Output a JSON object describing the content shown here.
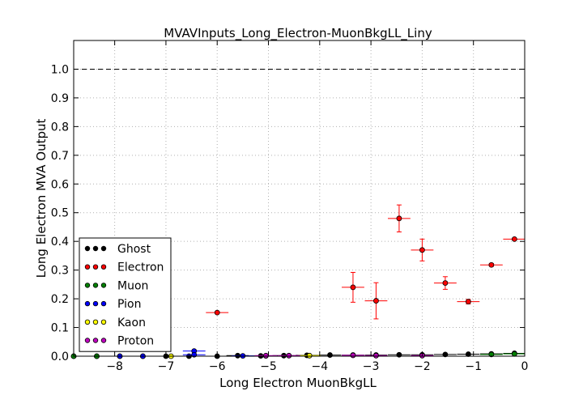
{
  "chart_data": {
    "type": "scatter",
    "title": "MVAVInputs_Long_Electron-MuonBkgLL_Liny",
    "xlabel": "Long Electron MuonBkgLL",
    "ylabel": "Long Electron MVA Output",
    "xlim": [
      -8.8,
      0
    ],
    "ylim": [
      0,
      1.1
    ],
    "xticks": [
      -8,
      -7,
      -6,
      -5,
      -4,
      -3,
      -2,
      -1,
      0
    ],
    "xtick_labels": [
      "−8",
      "−7",
      "−6",
      "−5",
      "−4",
      "−3",
      "−2",
      "−1",
      "0"
    ],
    "yticks": [
      0.0,
      0.1,
      0.2,
      0.3,
      0.4,
      0.5,
      0.6,
      0.7,
      0.8,
      0.9,
      1.0
    ],
    "ytick_labels": [
      "0.0",
      "0.1",
      "0.2",
      "0.3",
      "0.4",
      "0.5",
      "0.6",
      "0.7",
      "0.8",
      "0.9",
      "1.0"
    ],
    "grid": true,
    "reference_line": 1.0,
    "legend_position": "lower-left",
    "series": [
      {
        "name": "Ghost",
        "color": "#000000",
        "points": [
          {
            "x": -8.8,
            "y": 0.0,
            "xerr": 0.22,
            "yerr": 0.0
          },
          {
            "x": -8.35,
            "y": 0.0,
            "xerr": 0.22,
            "yerr": 0.0
          },
          {
            "x": -7.9,
            "y": 0.0,
            "xerr": 0.22,
            "yerr": 0.0
          },
          {
            "x": -7.45,
            "y": 0.0,
            "xerr": 0.22,
            "yerr": 0.0
          },
          {
            "x": -7.0,
            "y": 0.0,
            "xerr": 0.22,
            "yerr": 0.0
          },
          {
            "x": -6.55,
            "y": 0.0,
            "xerr": 0.22,
            "yerr": 0.0
          },
          {
            "x": -6.0,
            "y": 0.0,
            "xerr": 0.22,
            "yerr": 0.0
          },
          {
            "x": -5.6,
            "y": 0.002,
            "xerr": 0.22,
            "yerr": 0.001
          },
          {
            "x": -5.15,
            "y": 0.001,
            "xerr": 0.22,
            "yerr": 0.001
          },
          {
            "x": -4.7,
            "y": 0.002,
            "xerr": 0.22,
            "yerr": 0.001
          },
          {
            "x": -4.25,
            "y": 0.003,
            "xerr": 0.22,
            "yerr": 0.001
          },
          {
            "x": -3.8,
            "y": 0.004,
            "xerr": 0.22,
            "yerr": 0.001
          },
          {
            "x": -3.35,
            "y": 0.004,
            "xerr": 0.22,
            "yerr": 0.001
          },
          {
            "x": -2.9,
            "y": 0.004,
            "xerr": 0.22,
            "yerr": 0.001
          },
          {
            "x": -2.45,
            "y": 0.005,
            "xerr": 0.22,
            "yerr": 0.001
          },
          {
            "x": -2.0,
            "y": 0.005,
            "xerr": 0.22,
            "yerr": 0.001
          },
          {
            "x": -1.55,
            "y": 0.006,
            "xerr": 0.22,
            "yerr": 0.001
          },
          {
            "x": -1.1,
            "y": 0.007,
            "xerr": 0.22,
            "yerr": 0.001
          },
          {
            "x": -0.65,
            "y": 0.008,
            "xerr": 0.22,
            "yerr": 0.001
          },
          {
            "x": -0.2,
            "y": 0.01,
            "xerr": 0.22,
            "yerr": 0.001
          }
        ]
      },
      {
        "name": "Electron",
        "color": "#ff0000",
        "points": [
          {
            "x": -6.0,
            "y": 0.152,
            "xerr": 0.22,
            "yerr": 0.0
          },
          {
            "x": -3.35,
            "y": 0.24,
            "xerr": 0.22,
            "yerr": 0.052
          },
          {
            "x": -2.9,
            "y": 0.193,
            "xerr": 0.22,
            "yerr": 0.063
          },
          {
            "x": -2.45,
            "y": 0.48,
            "xerr": 0.22,
            "yerr": 0.047
          },
          {
            "x": -2.0,
            "y": 0.37,
            "xerr": 0.22,
            "yerr": 0.038
          },
          {
            "x": -1.55,
            "y": 0.255,
            "xerr": 0.22,
            "yerr": 0.022
          },
          {
            "x": -1.1,
            "y": 0.19,
            "xerr": 0.22,
            "yerr": 0.008
          },
          {
            "x": -0.65,
            "y": 0.318,
            "xerr": 0.22,
            "yerr": 0.005
          },
          {
            "x": -0.2,
            "y": 0.408,
            "xerr": 0.22,
            "yerr": 0.003
          }
        ]
      },
      {
        "name": "Muon",
        "color": "#008000",
        "points": [
          {
            "x": -8.8,
            "y": 0.0,
            "xerr": 0.22,
            "yerr": 0.0
          },
          {
            "x": -8.35,
            "y": 0.0,
            "xerr": 0.22,
            "yerr": 0.0
          },
          {
            "x": -0.65,
            "y": 0.006,
            "xerr": 0.22,
            "yerr": 0.001
          },
          {
            "x": -0.2,
            "y": 0.008,
            "xerr": 0.22,
            "yerr": 0.001
          }
        ]
      },
      {
        "name": "Pion",
        "color": "#0000ff",
        "points": [
          {
            "x": -7.9,
            "y": 0.0,
            "xerr": 0.22,
            "yerr": 0.0
          },
          {
            "x": -7.45,
            "y": 0.0,
            "xerr": 0.22,
            "yerr": 0.0
          },
          {
            "x": -6.45,
            "y": 0.018,
            "xerr": 0.22,
            "yerr": 0.0
          },
          {
            "x": -6.45,
            "y": 0.005,
            "xerr": 0.22,
            "yerr": 0.0
          },
          {
            "x": -5.5,
            "y": 0.001,
            "xerr": 0.22,
            "yerr": 0.0
          },
          {
            "x": -5.05,
            "y": 0.001,
            "xerr": 0.22,
            "yerr": 0.0
          }
        ]
      },
      {
        "name": "Kaon",
        "color": "#ffff00",
        "points": [
          {
            "x": -6.9,
            "y": 0.0,
            "xerr": 0.22,
            "yerr": 0.0
          },
          {
            "x": -4.2,
            "y": 0.002,
            "xerr": 0.22,
            "yerr": 0.0
          }
        ]
      },
      {
        "name": "Proton",
        "color": "#bf00bf",
        "points": [
          {
            "x": -5.05,
            "y": 0.002,
            "xerr": 0.22,
            "yerr": 0.0
          },
          {
            "x": -4.6,
            "y": 0.002,
            "xerr": 0.22,
            "yerr": 0.0
          },
          {
            "x": -3.35,
            "y": 0.003,
            "xerr": 0.22,
            "yerr": 0.0
          },
          {
            "x": -2.9,
            "y": 0.002,
            "xerr": 0.22,
            "yerr": 0.0
          },
          {
            "x": -2.0,
            "y": 0.002,
            "xerr": 0.22,
            "yerr": 0.0
          }
        ]
      }
    ]
  }
}
